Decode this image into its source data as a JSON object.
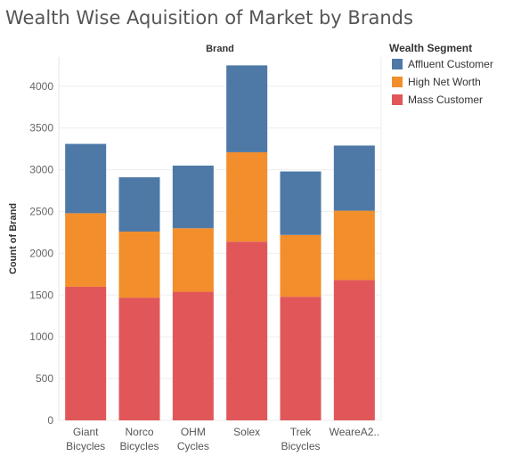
{
  "chart_data": {
    "type": "bar",
    "stacked": true,
    "title": "Wealth Wise Aquisition of Market by Brands",
    "column_header": "Brand",
    "ylabel": "Count of Brand",
    "ylim": [
      0,
      4350
    ],
    "yticks": [
      0,
      500,
      1000,
      1500,
      2000,
      2500,
      3000,
      3500,
      4000
    ],
    "categories": [
      [
        "Giant",
        "Bicycles"
      ],
      [
        "Norco",
        "Bicycles"
      ],
      [
        "OHM",
        "Cycles"
      ],
      [
        "Solex"
      ],
      [
        "Trek",
        "Bicycles"
      ],
      [
        "WeareA2.."
      ]
    ],
    "legend_title": "Wealth Segment",
    "legend_position": "top-right",
    "series": [
      {
        "name": "Mass Customer",
        "color": "#e15759",
        "values": [
          1600,
          1470,
          1540,
          2140,
          1480,
          1680
        ]
      },
      {
        "name": "High Net Worth",
        "color": "#f28e2b",
        "values": [
          880,
          790,
          760,
          1070,
          740,
          830
        ]
      },
      {
        "name": "Affluent Customer",
        "color": "#4e79a7",
        "values": [
          830,
          650,
          750,
          1040,
          760,
          780
        ]
      }
    ],
    "legend_order": [
      "Affluent Customer",
      "High Net Worth",
      "Mass Customer"
    ],
    "grid": true
  }
}
